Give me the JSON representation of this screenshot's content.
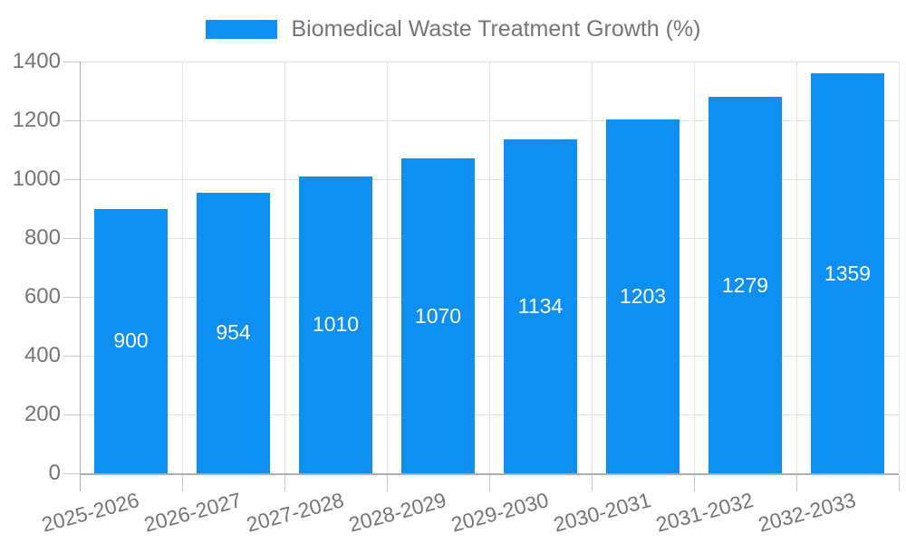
{
  "legend": {
    "label": "Biomedical Waste Treatment Growth (%)"
  },
  "chart_data": {
    "type": "bar",
    "title": "Biomedical Waste Treatment Growth (%)",
    "categories": [
      "2025-2026",
      "2026-2027",
      "2027-2028",
      "2028-2029",
      "2029-2030",
      "2030-2031",
      "2031-2032",
      "2032-2033"
    ],
    "values": [
      900,
      954,
      1010,
      1070,
      1134,
      1203,
      1279,
      1359
    ],
    "bar_labels": [
      "900",
      "954",
      "1010",
      "1070",
      "1134",
      "1203",
      "1279",
      "1359"
    ],
    "xlabel": "",
    "ylabel": "",
    "ylim": [
      0,
      1400
    ],
    "yticks": [
      0,
      200,
      400,
      600,
      800,
      1000,
      1200,
      1400
    ],
    "grid": true,
    "legend_position": "top"
  },
  "colors": {
    "bar": "#0d90f2",
    "bar_label": "#ffffff",
    "grid_line": "#e2e2e2",
    "axis_line": "#adadad",
    "tick_mark": "#c8c8c8",
    "tick_text": "#757575",
    "legend_text": "#757575",
    "background": "#ffffff"
  }
}
